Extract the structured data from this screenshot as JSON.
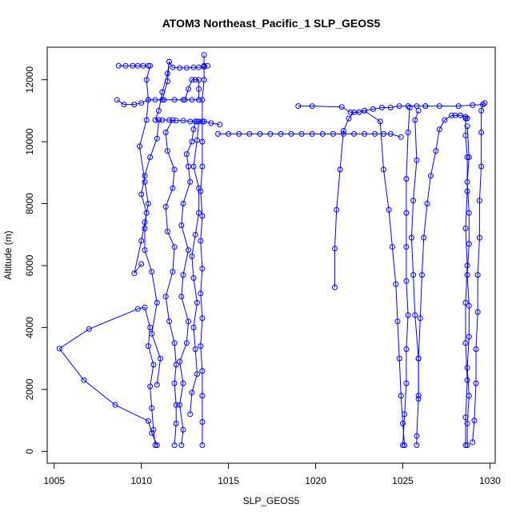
{
  "chart_data": {
    "type": "scatter",
    "title": "ATOM3 Northeast_Pacific_1 SLP_GEOS5",
    "xlabel": "SLP_GEOS5",
    "ylabel": "Altitude (m)",
    "xlim": [
      1004.6,
      1030.3
    ],
    "ylim": [
      -380,
      13050
    ],
    "x_ticks": [
      1005,
      1010,
      1015,
      1020,
      1025,
      1030
    ],
    "y_ticks": [
      0,
      2000,
      4000,
      6000,
      8000,
      10000,
      12000
    ],
    "grid": false,
    "marker": "open-circle",
    "color": "#0000ff",
    "series": [
      {
        "points": [
          [
            1010.8,
            200
          ],
          [
            1010.7,
            700
          ],
          [
            1010.6,
            1400
          ],
          [
            1010.5,
            2100
          ],
          [
            1010.7,
            2800
          ],
          [
            1010.4,
            3400
          ],
          [
            1010.5,
            4000
          ],
          [
            1010.2,
            4650
          ],
          [
            1009.8,
            4600
          ],
          [
            1007.0,
            3950
          ],
          [
            1005.3,
            3320
          ],
          [
            1006.7,
            2300
          ],
          [
            1008.5,
            1500
          ],
          [
            1010.4,
            980
          ],
          [
            1010.6,
            600
          ],
          [
            1010.9,
            200
          ]
        ]
      },
      {
        "points": [
          [
            1010.9,
            2150
          ],
          [
            1011.1,
            3000
          ],
          [
            1010.6,
            3800
          ],
          [
            1010.9,
            4800
          ],
          [
            1010.6,
            5800
          ],
          [
            1010.2,
            6500
          ],
          [
            1010.2,
            7200
          ],
          [
            1010.3,
            7700
          ],
          [
            1010.0,
            8300
          ],
          [
            1010.2,
            8900
          ],
          [
            1010.5,
            9500
          ],
          [
            1010.9,
            10100
          ],
          [
            1011.0,
            10700
          ]
        ]
      },
      {
        "points": [
          [
            1010.0,
            6050
          ],
          [
            1009.6,
            5750
          ],
          [
            1010.0,
            6800
          ],
          [
            1010.2,
            7400
          ],
          [
            1010.4,
            8000
          ],
          [
            1010.2,
            8700
          ],
          [
            1009.9,
            9850
          ],
          [
            1010.3,
            10700
          ],
          [
            1010.4,
            11350
          ],
          [
            1010.3,
            12000
          ],
          [
            1010.5,
            12450
          ]
        ]
      },
      {
        "points": [
          [
            1008.6,
            11350
          ],
          [
            1009.0,
            11200
          ],
          [
            1009.6,
            11200
          ],
          [
            1010.0,
            11250
          ],
          [
            1010.4,
            11350
          ],
          [
            1010.8,
            11350
          ],
          [
            1011.3,
            11350
          ],
          [
            1011.9,
            11350
          ],
          [
            1012.4,
            11350
          ],
          [
            1012.9,
            11350
          ],
          [
            1013.3,
            11350
          ]
        ]
      },
      {
        "points": [
          [
            1008.7,
            12450
          ],
          [
            1009.1,
            12450
          ],
          [
            1009.5,
            12450
          ],
          [
            1009.8,
            12450
          ],
          [
            1010.1,
            12450
          ],
          [
            1010.4,
            12450
          ]
        ]
      },
      {
        "points": [
          [
            1011.2,
            11350
          ],
          [
            1011.5,
            11950
          ],
          [
            1011.6,
            12580
          ],
          [
            1011.5,
            12200
          ],
          [
            1011.2,
            11600
          ],
          [
            1011.0,
            11000
          ],
          [
            1010.8,
            10700
          ],
          [
            1011.2,
            10700
          ],
          [
            1011.6,
            10700
          ],
          [
            1012.0,
            10680
          ],
          [
            1012.4,
            10680
          ],
          [
            1012.8,
            10650
          ],
          [
            1013.2,
            10650
          ],
          [
            1013.6,
            10650
          ],
          [
            1014.0,
            10600
          ],
          [
            1014.5,
            10550
          ]
        ]
      },
      {
        "points": [
          [
            1011.6,
            12580
          ],
          [
            1011.8,
            12400
          ],
          [
            1012.2,
            12380
          ],
          [
            1012.6,
            12380
          ],
          [
            1013.0,
            12400
          ],
          [
            1013.3,
            12400
          ],
          [
            1013.6,
            12420
          ],
          [
            1013.8,
            12450
          ]
        ]
      },
      {
        "points": [
          [
            1011.8,
            10700
          ],
          [
            1011.4,
            10300
          ],
          [
            1011.5,
            9700
          ],
          [
            1011.9,
            9100
          ],
          [
            1011.8,
            8500
          ],
          [
            1011.4,
            7900
          ],
          [
            1011.5,
            7100
          ],
          [
            1011.9,
            6600
          ],
          [
            1011.8,
            5800
          ],
          [
            1011.4,
            5000
          ],
          [
            1011.6,
            4200
          ],
          [
            1011.9,
            3500
          ],
          [
            1012.0,
            2800
          ],
          [
            1011.9,
            2200
          ],
          [
            1012.0,
            1500
          ],
          [
            1012.0,
            900
          ],
          [
            1011.9,
            200
          ]
        ]
      },
      {
        "points": [
          [
            1012.3,
            200
          ],
          [
            1012.4,
            700
          ],
          [
            1012.2,
            1500
          ],
          [
            1012.4,
            2200
          ],
          [
            1012.2,
            2900
          ],
          [
            1012.6,
            3500
          ],
          [
            1012.7,
            4200
          ],
          [
            1012.3,
            5000
          ],
          [
            1012.4,
            5700
          ],
          [
            1012.7,
            6500
          ],
          [
            1012.3,
            7300
          ],
          [
            1012.4,
            8000
          ],
          [
            1012.8,
            8700
          ],
          [
            1012.7,
            9200
          ],
          [
            1012.6,
            9600
          ],
          [
            1012.9,
            10000
          ],
          [
            1013.0,
            10400
          ],
          [
            1013.1,
            10650
          ]
        ]
      },
      {
        "points": [
          [
            1012.8,
            1200
          ],
          [
            1012.9,
            1900
          ],
          [
            1013.2,
            2500
          ],
          [
            1013.1,
            3300
          ],
          [
            1013.0,
            4000
          ],
          [
            1013.2,
            4800
          ],
          [
            1013.0,
            5600
          ],
          [
            1012.9,
            6300
          ],
          [
            1013.1,
            7000
          ],
          [
            1013.3,
            7700
          ],
          [
            1013.3,
            8500
          ],
          [
            1013.0,
            9200
          ],
          [
            1013.2,
            10050
          ],
          [
            1013.3,
            10650
          ]
        ]
      },
      {
        "points": [
          [
            1012.5,
            11350
          ],
          [
            1012.7,
            11700
          ],
          [
            1012.9,
            12000
          ],
          [
            1013.1,
            12000
          ],
          [
            1013.3,
            12000
          ],
          [
            1013.3,
            11700
          ],
          [
            1013.3,
            11350
          ]
        ]
      },
      {
        "points": [
          [
            1013.5,
            200
          ],
          [
            1013.5,
            950
          ],
          [
            1013.5,
            1800
          ],
          [
            1013.5,
            2600
          ],
          [
            1013.4,
            3400
          ],
          [
            1013.5,
            4300
          ],
          [
            1013.4,
            5100
          ],
          [
            1013.5,
            5900
          ],
          [
            1013.4,
            6800
          ],
          [
            1013.5,
            7600
          ],
          [
            1013.4,
            8400
          ],
          [
            1013.5,
            9200
          ],
          [
            1013.5,
            10000
          ],
          [
            1013.5,
            10650
          ],
          [
            1013.5,
            11350
          ],
          [
            1013.6,
            12000
          ],
          [
            1013.6,
            12450
          ],
          [
            1013.6,
            12800
          ]
        ]
      },
      {
        "points": [
          [
            1014.4,
            10250
          ],
          [
            1015.0,
            10250
          ],
          [
            1015.6,
            10250
          ],
          [
            1016.2,
            10250
          ],
          [
            1016.8,
            10250
          ],
          [
            1017.4,
            10250
          ],
          [
            1018.0,
            10250
          ],
          [
            1018.6,
            10250
          ],
          [
            1019.2,
            10250
          ],
          [
            1019.8,
            10250
          ],
          [
            1020.4,
            10250
          ],
          [
            1021.0,
            10250
          ],
          [
            1021.6,
            10250
          ],
          [
            1022.2,
            10250
          ],
          [
            1022.8,
            10250
          ],
          [
            1023.4,
            10250
          ],
          [
            1023.9,
            10250
          ],
          [
            1024.3,
            10250
          ],
          [
            1024.9,
            10150
          ]
        ]
      },
      {
        "points": [
          [
            1021.1,
            5300
          ],
          [
            1021.1,
            6550
          ],
          [
            1021.2,
            7800
          ],
          [
            1021.4,
            9100
          ],
          [
            1021.6,
            10350
          ],
          [
            1021.9,
            10750
          ],
          [
            1022.2,
            10950
          ],
          [
            1022.5,
            10950
          ],
          [
            1022.8,
            11000
          ],
          [
            1023.3,
            11050
          ],
          [
            1023.8,
            11100
          ],
          [
            1024.3,
            11100
          ],
          [
            1024.8,
            11150
          ],
          [
            1025.3,
            11150
          ],
          [
            1025.8,
            11150
          ],
          [
            1026.3,
            11150
          ]
        ]
      },
      {
        "points": [
          [
            1019.0,
            11150
          ],
          [
            1019.8,
            11150
          ],
          [
            1021.5,
            11120
          ],
          [
            1022.0,
            10950
          ],
          [
            1022.5,
            10950
          ]
        ]
      },
      {
        "points": [
          [
            1022.8,
            11000
          ],
          [
            1023.7,
            10650
          ],
          [
            1023.9,
            9100
          ],
          [
            1024.2,
            7800
          ],
          [
            1024.4,
            6600
          ],
          [
            1024.6,
            5400
          ],
          [
            1024.7,
            4200
          ],
          [
            1024.8,
            3000
          ],
          [
            1024.9,
            1800
          ],
          [
            1025.0,
            900
          ],
          [
            1025.1,
            200
          ]
        ]
      },
      {
        "points": [
          [
            1025.0,
            200
          ],
          [
            1025.1,
            1200
          ],
          [
            1025.2,
            2200
          ],
          [
            1025.2,
            3300
          ],
          [
            1025.3,
            4400
          ],
          [
            1025.2,
            5500
          ],
          [
            1025.2,
            6600
          ],
          [
            1025.2,
            7700
          ],
          [
            1025.2,
            8800
          ],
          [
            1025.3,
            10300
          ],
          [
            1025.4,
            11100
          ]
        ]
      },
      {
        "points": [
          [
            1025.8,
            200
          ],
          [
            1025.8,
            500
          ],
          [
            1025.9,
            1700
          ],
          [
            1025.9,
            3000
          ],
          [
            1025.7,
            4400
          ],
          [
            1025.6,
            5700
          ],
          [
            1025.5,
            6900
          ],
          [
            1025.6,
            8100
          ],
          [
            1025.8,
            9400
          ],
          [
            1025.7,
            10700
          ],
          [
            1025.9,
            11000
          ]
        ]
      },
      {
        "points": [
          [
            1025.9,
            1800
          ],
          [
            1025.9,
            3000
          ],
          [
            1026.0,
            4300
          ],
          [
            1026.1,
            5700
          ],
          [
            1026.2,
            6900
          ],
          [
            1026.4,
            8000
          ],
          [
            1026.6,
            8900
          ],
          [
            1026.9,
            9700
          ],
          [
            1027.1,
            10400
          ],
          [
            1027.4,
            10700
          ],
          [
            1027.8,
            10850
          ],
          [
            1028.3,
            10850
          ]
        ]
      },
      {
        "points": [
          [
            1028.6,
            200
          ],
          [
            1028.6,
            1100
          ],
          [
            1028.7,
            2300
          ],
          [
            1028.6,
            3500
          ],
          [
            1028.6,
            4800
          ],
          [
            1028.7,
            6000
          ],
          [
            1028.6,
            7200
          ],
          [
            1028.7,
            8400
          ],
          [
            1028.7,
            9500
          ],
          [
            1028.6,
            10200
          ],
          [
            1028.6,
            10750
          ]
        ]
      },
      {
        "points": [
          [
            1028.7,
            200
          ],
          [
            1028.7,
            900
          ],
          [
            1028.8,
            1800
          ],
          [
            1028.7,
            2700
          ],
          [
            1028.8,
            3700
          ],
          [
            1028.8,
            4700
          ],
          [
            1028.7,
            5700
          ],
          [
            1028.8,
            6700
          ],
          [
            1028.8,
            7700
          ],
          [
            1028.7,
            8700
          ],
          [
            1028.8,
            9500
          ],
          [
            1028.7,
            10500
          ]
        ]
      },
      {
        "points": [
          [
            1029.0,
            300
          ],
          [
            1029.1,
            1000
          ],
          [
            1029.2,
            2200
          ],
          [
            1029.2,
            3300
          ],
          [
            1029.3,
            4500
          ],
          [
            1029.3,
            5700
          ],
          [
            1029.4,
            6900
          ],
          [
            1029.4,
            8100
          ],
          [
            1029.5,
            9200
          ],
          [
            1029.5,
            10300
          ],
          [
            1029.5,
            11000
          ],
          [
            1029.6,
            11200
          ],
          [
            1029.7,
            11250
          ]
        ]
      },
      {
        "points": [
          [
            1026.3,
            11150
          ],
          [
            1027.1,
            11150
          ],
          [
            1028.2,
            11150
          ],
          [
            1029.0,
            11180
          ],
          [
            1029.6,
            11200
          ]
        ]
      },
      {
        "points": [
          [
            1028.0,
            10850
          ],
          [
            1028.3,
            10850
          ],
          [
            1028.6,
            10800
          ],
          [
            1028.7,
            10750
          ]
        ]
      }
    ]
  }
}
